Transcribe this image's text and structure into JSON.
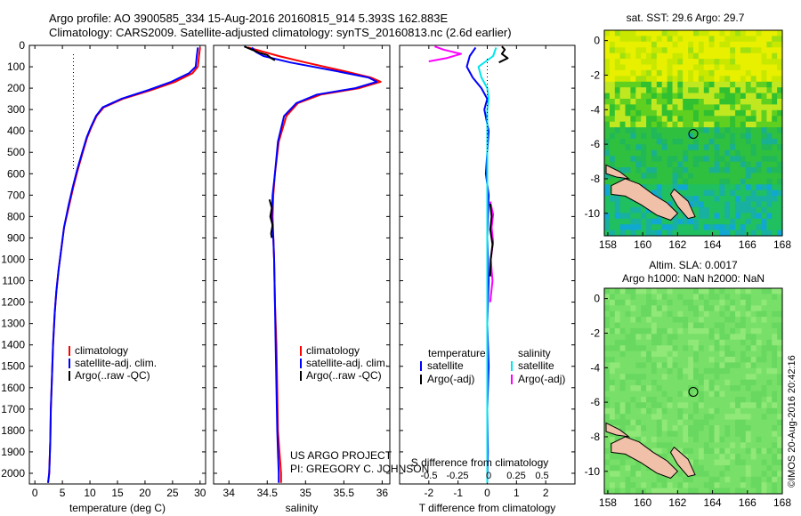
{
  "header": {
    "line1": "Argo profile: AO 3900585_334 15-Aug-2016 20160815_914 5.393S 162.883E",
    "line2": "Climatology: CARS2009. Satellite-adjusted climatology: synTS_20160813.nc (2.6d earlier)"
  },
  "credit": {
    "project": "US ARGO PROJECT",
    "pi": "PI: GREGORY C. JOHNSON",
    "stamp": "©IMOS 20-Aug-2016 20:42:16"
  },
  "colors": {
    "climatology": "#ff0000",
    "satellite": "#0000ff",
    "argo": "#000000",
    "satellite_salinity": "#00e5ee",
    "argo_salinity": "#ff00ff",
    "land": "#f0c0a8"
  },
  "chart_data": [
    {
      "id": "temperature",
      "type": "line",
      "xlabel": "temperature (deg C)",
      "ylabel": "",
      "xlim": [
        -1,
        31
      ],
      "ylim": [
        2050,
        0
      ],
      "x_ticks": [
        0,
        5,
        10,
        15,
        20,
        25,
        30
      ],
      "y_ticks": [
        0,
        100,
        200,
        300,
        400,
        500,
        600,
        700,
        800,
        900,
        1000,
        1100,
        1200,
        1300,
        1400,
        1500,
        1600,
        1700,
        1800,
        1900,
        2000
      ],
      "reference_line_x": 7,
      "legend": [
        "climatology",
        "satellite-adj. clim.",
        "Argo(..raw -QC)"
      ],
      "series": [
        {
          "name": "climatology",
          "color": "#ff0000",
          "x": [
            30.0,
            29.8,
            29.6,
            28.6,
            25.5,
            21.0,
            16.0,
            12.5,
            11.2,
            10.3,
            9.5,
            8.7,
            7.8,
            7.0,
            6.2,
            5.3,
            4.8,
            4.3,
            3.9,
            3.6,
            3.3,
            3.1,
            2.9,
            2.8,
            2.6,
            2.4
          ],
          "y": [
            10,
            50,
            100,
            130,
            170,
            210,
            250,
            290,
            330,
            380,
            430,
            500,
            580,
            660,
            750,
            850,
            950,
            1050,
            1150,
            1250,
            1400,
            1550,
            1700,
            1850,
            2000,
            2045
          ]
        },
        {
          "name": "satellite-adj. clim.",
          "color": "#0000ff",
          "x": [
            29.6,
            29.4,
            29.2,
            28.0,
            24.8,
            20.5,
            15.7,
            12.3,
            11.1,
            10.2,
            9.4,
            8.6,
            7.7,
            6.9,
            6.1,
            5.3,
            4.8,
            4.3,
            3.9,
            3.6,
            3.3,
            3.1,
            2.9,
            2.8,
            2.6,
            2.4
          ],
          "y": [
            10,
            50,
            100,
            130,
            170,
            210,
            250,
            290,
            330,
            380,
            430,
            500,
            580,
            660,
            750,
            850,
            950,
            1050,
            1150,
            1250,
            1400,
            1550,
            1700,
            1850,
            2000,
            2045
          ]
        }
      ]
    },
    {
      "id": "salinity",
      "type": "line",
      "xlabel": "salinity",
      "ylabel": "",
      "xlim": [
        33.8,
        36.1
      ],
      "ylim": [
        2050,
        0
      ],
      "x_ticks": [
        34,
        34.5,
        35,
        35.5,
        36
      ],
      "legend": [
        "climatology",
        "satellite-adj. clim.",
        "Argo(..raw -QC)"
      ],
      "series": [
        {
          "name": "climatology",
          "color": "#ff0000",
          "x": [
            34.25,
            34.45,
            34.65,
            35.0,
            35.5,
            35.85,
            35.98,
            35.7,
            35.2,
            34.9,
            34.75,
            34.65,
            34.6,
            34.58,
            34.57,
            34.58,
            34.59,
            34.6,
            34.62,
            34.63,
            34.64,
            34.66,
            34.68,
            34.68
          ],
          "y": [
            10,
            30,
            50,
            80,
            120,
            150,
            170,
            200,
            230,
            270,
            330,
            450,
            600,
            700,
            800,
            900,
            1000,
            1200,
            1400,
            1600,
            1800,
            1900,
            2000,
            2045
          ]
        },
        {
          "name": "satellite-adj. clim.",
          "color": "#0000ff",
          "x": [
            34.3,
            34.35,
            34.45,
            34.8,
            35.4,
            35.82,
            35.93,
            35.65,
            35.15,
            34.88,
            34.72,
            34.64,
            34.6,
            34.57,
            34.56,
            34.58,
            34.59,
            34.6,
            34.61,
            34.62,
            34.63,
            34.64,
            34.65,
            34.65
          ],
          "y": [
            10,
            30,
            50,
            80,
            120,
            150,
            170,
            200,
            230,
            270,
            330,
            450,
            600,
            700,
            800,
            900,
            1000,
            1200,
            1400,
            1600,
            1800,
            1900,
            2000,
            2045
          ]
        },
        {
          "name": "Argo(..raw -QC)",
          "color": "#000000",
          "x": [
            34.2,
            34.3,
            34.4,
            34.5,
            34.55,
            34.6
          ],
          "y": [
            5,
            20,
            35,
            45,
            60,
            70
          ]
        },
        {
          "name": "",
          "color": "#000000",
          "x": [
            34.53,
            34.56,
            34.54,
            34.57,
            34.55,
            34.56
          ],
          "y": [
            720,
            760,
            800,
            840,
            880,
            900
          ]
        }
      ]
    },
    {
      "id": "difference",
      "type": "line",
      "xlabel": "T difference from climatology",
      "x2label": "S difference from climatology",
      "ylabel": "",
      "xlim": [
        -3,
        3
      ],
      "ylim": [
        2050,
        0
      ],
      "x_ticks": [
        -2,
        -1,
        0,
        1,
        2
      ],
      "x2_ticks": [
        "-0.5",
        "-0.25",
        "0",
        "0.25",
        "0.5"
      ],
      "legend_headers": [
        "temperature",
        "salinity"
      ],
      "legend": [
        "satellite",
        "Argo(-adj)",
        "satellite",
        "Argo(-adj)"
      ],
      "series": [
        {
          "name": "satellite",
          "color": "#0000ff",
          "x": [
            -0.4,
            -0.6,
            -0.7,
            -0.5,
            -0.2,
            0.0,
            -0.1,
            0.05,
            0.0,
            -0.05,
            0.05,
            0.0,
            0.05,
            0.0,
            0.05,
            0.0,
            0.02,
            0.0
          ],
          "y": [
            10,
            50,
            100,
            150,
            200,
            250,
            300,
            400,
            500,
            600,
            700,
            900,
            1100,
            1300,
            1500,
            1700,
            1900,
            2045
          ]
        },
        {
          "name": "satellite",
          "color": "#00e5ee",
          "x": [
            0.3,
            0.2,
            -0.3,
            -0.2,
            0.0,
            0.05,
            0.0,
            0.0,
            0.0,
            0.0,
            0.0,
            0.0
          ],
          "y": [
            10,
            50,
            100,
            150,
            200,
            250,
            300,
            500,
            800,
            1200,
            1600,
            2045
          ]
        },
        {
          "name": "Argo(-adj)",
          "color": "#ff00ff",
          "x": [
            -1.8,
            -1.5,
            -0.9,
            -1.4,
            -2.0
          ],
          "y": [
            5,
            20,
            40,
            60,
            75
          ]
        },
        {
          "name": "",
          "color": "#ff00ff",
          "x": [
            0.1,
            0.2,
            0.15,
            0.2,
            0.12,
            0.18,
            0.1
          ],
          "y": [
            730,
            790,
            850,
            920,
            1000,
            1100,
            1200
          ]
        },
        {
          "name": "Argo(-adj)",
          "color": "#000000",
          "x": [
            0.5,
            0.6,
            0.5,
            0.7,
            0.4
          ],
          "y": [
            5,
            20,
            40,
            60,
            80
          ]
        },
        {
          "name": "",
          "color": "#000000",
          "x": [
            0.1,
            0.15,
            0.1,
            0.18,
            0.12,
            0.1
          ],
          "y": [
            740,
            800,
            860,
            930,
            1000,
            1080
          ]
        }
      ]
    },
    {
      "id": "sst_map",
      "type": "heatmap",
      "title": "sat. SST: 29.6  Argo: 29.7",
      "xlim": [
        157.8,
        168.0
      ],
      "ylim": [
        -11.3,
        0.6
      ],
      "x_ticks": [
        158,
        160,
        162,
        164,
        166,
        168
      ],
      "y_ticks": [
        0,
        -2,
        -4,
        -6,
        -8,
        -10
      ],
      "marker": {
        "lon": 162.9,
        "lat": -5.4
      }
    },
    {
      "id": "sla_map",
      "type": "heatmap",
      "title": "Altim. SLA: 0.0017",
      "subtitle": "Argo h1000: NaN  h2000: NaN",
      "xlim": [
        157.8,
        168.0
      ],
      "ylim": [
        -11.3,
        0.6
      ],
      "x_ticks": [
        158,
        160,
        162,
        164,
        166,
        168
      ],
      "y_ticks": [
        0,
        -2,
        -4,
        -6,
        -8,
        -10
      ],
      "marker": {
        "lon": 162.9,
        "lat": -5.4
      }
    }
  ]
}
